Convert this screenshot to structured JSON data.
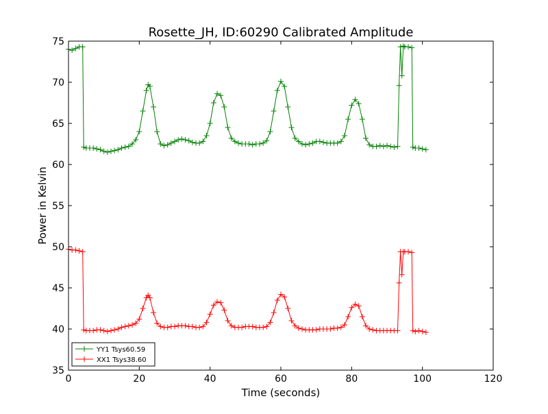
{
  "chart_data": {
    "type": "line",
    "title": "Rosette_JH, ID:60290 Calibrated Amplitude",
    "xlabel": "Time (seconds)",
    "ylabel": "Power in Kelvin",
    "xlim": [
      0,
      120
    ],
    "ylim": [
      35,
      75
    ],
    "xticks": [
      0,
      20,
      40,
      60,
      80,
      100,
      120
    ],
    "yticks": [
      35,
      40,
      45,
      50,
      55,
      60,
      65,
      70,
      75
    ],
    "grid": false,
    "legend_position": "lower-left",
    "marker": "+",
    "series": [
      {
        "name": "YY1 Tsys60.59",
        "color": "#008000",
        "points": [
          [
            0.0,
            74.0
          ],
          [
            1.0,
            73.9
          ],
          [
            2.0,
            74.1
          ],
          [
            3.0,
            74.3
          ],
          [
            4.0,
            74.3
          ],
          [
            4.3,
            62.1
          ],
          [
            5.0,
            62.0
          ],
          [
            6.0,
            62.0
          ],
          [
            7.0,
            62.0
          ],
          [
            8.0,
            61.9
          ],
          [
            9.0,
            61.8
          ],
          [
            10.0,
            61.6
          ],
          [
            11.0,
            61.5
          ],
          [
            12.0,
            61.6
          ],
          [
            13.0,
            61.7
          ],
          [
            14.0,
            61.8
          ],
          [
            15.0,
            62.0
          ],
          [
            16.0,
            62.1
          ],
          [
            17.0,
            62.2
          ],
          [
            18.0,
            62.5
          ],
          [
            19.0,
            63.0
          ],
          [
            20.0,
            64.0
          ],
          [
            21.0,
            66.5
          ],
          [
            22.0,
            69.0
          ],
          [
            22.5,
            69.7
          ],
          [
            23.0,
            69.5
          ],
          [
            24.0,
            67.0
          ],
          [
            25.0,
            64.0
          ],
          [
            26.0,
            62.5
          ],
          [
            27.0,
            62.3
          ],
          [
            28.0,
            62.4
          ],
          [
            29.0,
            62.6
          ],
          [
            30.0,
            62.8
          ],
          [
            31.0,
            63.0
          ],
          [
            32.0,
            63.1
          ],
          [
            33.0,
            63.0
          ],
          [
            34.0,
            62.9
          ],
          [
            35.0,
            62.7
          ],
          [
            36.0,
            62.6
          ],
          [
            37.0,
            62.6
          ],
          [
            38.0,
            62.8
          ],
          [
            39.0,
            63.5
          ],
          [
            40.0,
            65.0
          ],
          [
            41.0,
            67.5
          ],
          [
            42.0,
            68.6
          ],
          [
            43.0,
            68.4
          ],
          [
            44.0,
            67.0
          ],
          [
            45.0,
            64.5
          ],
          [
            46.0,
            63.2
          ],
          [
            47.0,
            62.8
          ],
          [
            48.0,
            62.6
          ],
          [
            49.0,
            62.5
          ],
          [
            50.0,
            62.5
          ],
          [
            51.0,
            62.5
          ],
          [
            52.0,
            62.4
          ],
          [
            53.0,
            62.5
          ],
          [
            54.0,
            62.5
          ],
          [
            55.0,
            62.6
          ],
          [
            56.0,
            62.9
          ],
          [
            57.0,
            64.0
          ],
          [
            58.0,
            66.5
          ],
          [
            59.0,
            69.0
          ],
          [
            60.0,
            70.1
          ],
          [
            61.0,
            69.5
          ],
          [
            62.0,
            67.0
          ],
          [
            63.0,
            64.5
          ],
          [
            64.0,
            63.2
          ],
          [
            65.0,
            62.8
          ],
          [
            66.0,
            62.5
          ],
          [
            67.0,
            62.4
          ],
          [
            68.0,
            62.5
          ],
          [
            69.0,
            62.6
          ],
          [
            70.0,
            62.8
          ],
          [
            71.0,
            62.8
          ],
          [
            72.0,
            62.7
          ],
          [
            73.0,
            62.6
          ],
          [
            74.0,
            62.6
          ],
          [
            75.0,
            62.6
          ],
          [
            76.0,
            62.6
          ],
          [
            77.0,
            62.8
          ],
          [
            78.0,
            63.5
          ],
          [
            79.0,
            65.5
          ],
          [
            80.0,
            67.2
          ],
          [
            81.0,
            67.9
          ],
          [
            82.0,
            67.4
          ],
          [
            83.0,
            65.5
          ],
          [
            84.0,
            63.2
          ],
          [
            85.0,
            62.4
          ],
          [
            86.0,
            62.2
          ],
          [
            87.0,
            62.2
          ],
          [
            88.0,
            62.3
          ],
          [
            89.0,
            62.2
          ],
          [
            90.0,
            62.3
          ],
          [
            91.0,
            62.2
          ],
          [
            92.0,
            62.1
          ],
          [
            93.0,
            62.2
          ],
          [
            93.4,
            69.6
          ],
          [
            93.8,
            74.3
          ],
          [
            94.2,
            70.8
          ],
          [
            94.6,
            74.4
          ],
          [
            95.0,
            74.3
          ],
          [
            96.0,
            74.3
          ],
          [
            97.0,
            74.2
          ],
          [
            97.3,
            62.1
          ],
          [
            98.0,
            62.0
          ],
          [
            99.0,
            62.0
          ],
          [
            100.0,
            61.9
          ],
          [
            101.0,
            61.8
          ]
        ]
      },
      {
        "name": "XX1 Tsys38.60",
        "color": "#ff0000",
        "points": [
          [
            0.0,
            49.7
          ],
          [
            1.0,
            49.6
          ],
          [
            2.0,
            49.6
          ],
          [
            3.0,
            49.5
          ],
          [
            4.0,
            49.4
          ],
          [
            4.3,
            39.9
          ],
          [
            5.0,
            39.8
          ],
          [
            6.0,
            39.8
          ],
          [
            7.0,
            39.8
          ],
          [
            8.0,
            39.9
          ],
          [
            9.0,
            39.9
          ],
          [
            10.0,
            39.8
          ],
          [
            11.0,
            39.7
          ],
          [
            12.0,
            39.8
          ],
          [
            13.0,
            39.9
          ],
          [
            14.0,
            40.0
          ],
          [
            15.0,
            40.2
          ],
          [
            16.0,
            40.3
          ],
          [
            17.0,
            40.4
          ],
          [
            18.0,
            40.5
          ],
          [
            19.0,
            40.7
          ],
          [
            20.0,
            41.2
          ],
          [
            21.0,
            42.5
          ],
          [
            22.0,
            43.8
          ],
          [
            22.5,
            44.1
          ],
          [
            23.0,
            43.8
          ],
          [
            24.0,
            42.0
          ],
          [
            25.0,
            40.7
          ],
          [
            26.0,
            40.3
          ],
          [
            27.0,
            40.2
          ],
          [
            28.0,
            40.2
          ],
          [
            29.0,
            40.3
          ],
          [
            30.0,
            40.3
          ],
          [
            31.0,
            40.4
          ],
          [
            32.0,
            40.4
          ],
          [
            33.0,
            40.4
          ],
          [
            34.0,
            40.3
          ],
          [
            35.0,
            40.3
          ],
          [
            36.0,
            40.2
          ],
          [
            37.0,
            40.2
          ],
          [
            38.0,
            40.3
          ],
          [
            39.0,
            40.8
          ],
          [
            40.0,
            41.8
          ],
          [
            41.0,
            42.9
          ],
          [
            42.0,
            43.3
          ],
          [
            43.0,
            43.2
          ],
          [
            44.0,
            42.3
          ],
          [
            45.0,
            41.0
          ],
          [
            46.0,
            40.4
          ],
          [
            47.0,
            40.2
          ],
          [
            48.0,
            40.2
          ],
          [
            49.0,
            40.2
          ],
          [
            50.0,
            40.3
          ],
          [
            51.0,
            40.3
          ],
          [
            52.0,
            40.3
          ],
          [
            53.0,
            40.2
          ],
          [
            54.0,
            40.2
          ],
          [
            55.0,
            40.2
          ],
          [
            56.0,
            40.3
          ],
          [
            57.0,
            40.8
          ],
          [
            58.0,
            42.0
          ],
          [
            59.0,
            43.5
          ],
          [
            60.0,
            44.2
          ],
          [
            61.0,
            43.9
          ],
          [
            62.0,
            42.5
          ],
          [
            63.0,
            41.0
          ],
          [
            64.0,
            40.4
          ],
          [
            65.0,
            40.1
          ],
          [
            66.0,
            40.0
          ],
          [
            67.0,
            39.9
          ],
          [
            68.0,
            39.9
          ],
          [
            69.0,
            39.9
          ],
          [
            70.0,
            39.9
          ],
          [
            71.0,
            40.0
          ],
          [
            72.0,
            40.0
          ],
          [
            73.0,
            40.0
          ],
          [
            74.0,
            40.0
          ],
          [
            75.0,
            40.1
          ],
          [
            76.0,
            40.1
          ],
          [
            77.0,
            40.2
          ],
          [
            78.0,
            40.5
          ],
          [
            79.0,
            41.5
          ],
          [
            80.0,
            42.6
          ],
          [
            81.0,
            43.0
          ],
          [
            82.0,
            42.8
          ],
          [
            83.0,
            41.5
          ],
          [
            84.0,
            40.4
          ],
          [
            85.0,
            40.0
          ],
          [
            86.0,
            39.9
          ],
          [
            87.0,
            39.8
          ],
          [
            88.0,
            39.8
          ],
          [
            89.0,
            39.8
          ],
          [
            90.0,
            39.8
          ],
          [
            91.0,
            39.8
          ],
          [
            92.0,
            39.8
          ],
          [
            93.0,
            39.8
          ],
          [
            93.4,
            45.6
          ],
          [
            93.8,
            49.4
          ],
          [
            94.2,
            46.6
          ],
          [
            94.6,
            49.4
          ],
          [
            95.0,
            49.4
          ],
          [
            96.0,
            49.4
          ],
          [
            97.0,
            49.3
          ],
          [
            97.3,
            39.8
          ],
          [
            98.0,
            39.7
          ],
          [
            99.0,
            39.8
          ],
          [
            100.0,
            39.7
          ],
          [
            101.0,
            39.6
          ]
        ]
      }
    ]
  }
}
